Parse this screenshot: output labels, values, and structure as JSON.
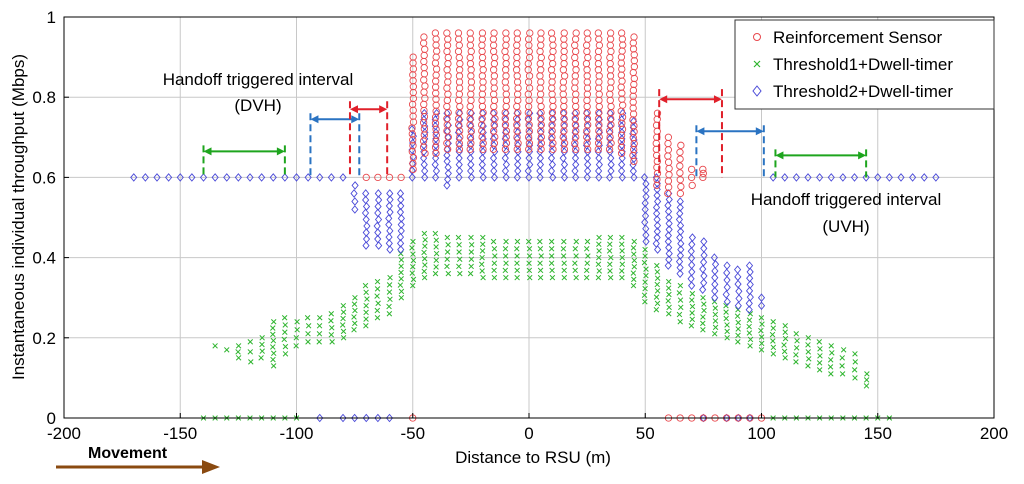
{
  "chart_data": {
    "type": "scatter",
    "xlabel": "Distance to RSU (m)",
    "ylabel": "Instantaneous individual throughput (Mbps)",
    "xlim": [
      -200,
      200
    ],
    "ylim": [
      0,
      1
    ],
    "xticks": [
      -200,
      -150,
      -100,
      -50,
      0,
      50,
      100,
      150,
      200
    ],
    "yticks": [
      0,
      0.2,
      0.4,
      0.6,
      0.8,
      1
    ],
    "xtick_labels": [
      "-200",
      "-150",
      "-100",
      "-50",
      "0",
      "50",
      "100",
      "150",
      "200"
    ],
    "ytick_labels": [
      "0",
      "0.2",
      "0.4",
      "0.6",
      "0.8",
      "1"
    ],
    "grid": true,
    "legend_position": "top-right",
    "series": [
      {
        "name": "Reinforcement Sensor",
        "marker": "circle",
        "color": "#e8474c",
        "columns": [
          {
            "x": -50,
            "ymin": 0.62,
            "ymax": 0.9
          },
          {
            "x": -45,
            "ymin": 0.66,
            "ymax": 0.95
          },
          {
            "x": -40,
            "ymin": 0.66,
            "ymax": 0.96
          },
          {
            "x": -35,
            "ymin": 0.67,
            "ymax": 0.96
          },
          {
            "x": -30,
            "ymin": 0.67,
            "ymax": 0.96
          },
          {
            "x": -25,
            "ymin": 0.67,
            "ymax": 0.96
          },
          {
            "x": -20,
            "ymin": 0.67,
            "ymax": 0.96
          },
          {
            "x": -15,
            "ymin": 0.67,
            "ymax": 0.96
          },
          {
            "x": -10,
            "ymin": 0.67,
            "ymax": 0.96
          },
          {
            "x": -5,
            "ymin": 0.67,
            "ymax": 0.96
          },
          {
            "x": 0,
            "ymin": 0.67,
            "ymax": 0.96
          },
          {
            "x": 5,
            "ymin": 0.67,
            "ymax": 0.96
          },
          {
            "x": 10,
            "ymin": 0.67,
            "ymax": 0.96
          },
          {
            "x": 15,
            "ymin": 0.67,
            "ymax": 0.96
          },
          {
            "x": 20,
            "ymin": 0.67,
            "ymax": 0.96
          },
          {
            "x": 25,
            "ymin": 0.67,
            "ymax": 0.96
          },
          {
            "x": 30,
            "ymin": 0.67,
            "ymax": 0.96
          },
          {
            "x": 35,
            "ymin": 0.67,
            "ymax": 0.96
          },
          {
            "x": 40,
            "ymin": 0.66,
            "ymax": 0.96
          },
          {
            "x": 45,
            "ymin": 0.64,
            "ymax": 0.95
          },
          {
            "x": 55,
            "ymin": 0.58,
            "ymax": 0.76
          },
          {
            "x": 60,
            "ymin": 0.56,
            "ymax": 0.7
          },
          {
            "x": 65,
            "ymin": 0.56,
            "ymax": 0.68
          },
          {
            "x": 70,
            "ymin": 0.58,
            "ymax": 0.62
          },
          {
            "x": 75,
            "ymin": 0.6,
            "ymax": 0.62
          }
        ],
        "outliers": [
          {
            "x": -70,
            "y": 0.6
          },
          {
            "x": -65,
            "y": 0.6
          },
          {
            "x": -60,
            "y": 0.6
          },
          {
            "x": -55,
            "y": 0.6
          },
          {
            "x": 60,
            "y": 0.0
          },
          {
            "x": 65,
            "y": 0.0
          },
          {
            "x": 70,
            "y": 0.0
          },
          {
            "x": 75,
            "y": 0.0
          },
          {
            "x": 80,
            "y": 0.0
          },
          {
            "x": 85,
            "y": 0.0
          },
          {
            "x": 90,
            "y": 0.0
          },
          {
            "x": 95,
            "y": 0.0
          },
          {
            "x": 100,
            "y": 0.0
          },
          {
            "x": -50,
            "y": 0.0
          }
        ]
      },
      {
        "name": "Threshold1+Dwell-timer",
        "marker": "x",
        "color": "#2fb52f",
        "columns": [
          {
            "x": -125,
            "ymin": 0.15,
            "ymax": 0.18
          },
          {
            "x": -120,
            "ymin": 0.14,
            "ymax": 0.19
          },
          {
            "x": -115,
            "ymin": 0.15,
            "ymax": 0.2
          },
          {
            "x": -110,
            "ymin": 0.13,
            "ymax": 0.24
          },
          {
            "x": -105,
            "ymin": 0.16,
            "ymax": 0.25
          },
          {
            "x": -100,
            "ymin": 0.18,
            "ymax": 0.24
          },
          {
            "x": -95,
            "ymin": 0.19,
            "ymax": 0.25
          },
          {
            "x": -90,
            "ymin": 0.19,
            "ymax": 0.25
          },
          {
            "x": -85,
            "ymin": 0.19,
            "ymax": 0.26
          },
          {
            "x": -80,
            "ymin": 0.2,
            "ymax": 0.28
          },
          {
            "x": -75,
            "ymin": 0.22,
            "ymax": 0.3
          },
          {
            "x": -70,
            "ymin": 0.23,
            "ymax": 0.33
          },
          {
            "x": -65,
            "ymin": 0.25,
            "ymax": 0.34
          },
          {
            "x": -60,
            "ymin": 0.26,
            "ymax": 0.35
          },
          {
            "x": -55,
            "ymin": 0.3,
            "ymax": 0.41
          },
          {
            "x": -50,
            "ymin": 0.33,
            "ymax": 0.44
          },
          {
            "x": -45,
            "ymin": 0.35,
            "ymax": 0.46
          },
          {
            "x": -40,
            "ymin": 0.36,
            "ymax": 0.46
          },
          {
            "x": -35,
            "ymin": 0.36,
            "ymax": 0.45
          },
          {
            "x": -30,
            "ymin": 0.36,
            "ymax": 0.45
          },
          {
            "x": -25,
            "ymin": 0.36,
            "ymax": 0.45
          },
          {
            "x": -20,
            "ymin": 0.35,
            "ymax": 0.45
          },
          {
            "x": -15,
            "ymin": 0.35,
            "ymax": 0.44
          },
          {
            "x": -10,
            "ymin": 0.35,
            "ymax": 0.44
          },
          {
            "x": -5,
            "ymin": 0.35,
            "ymax": 0.44
          },
          {
            "x": 0,
            "ymin": 0.35,
            "ymax": 0.44
          },
          {
            "x": 5,
            "ymin": 0.35,
            "ymax": 0.44
          },
          {
            "x": 10,
            "ymin": 0.35,
            "ymax": 0.44
          },
          {
            "x": 15,
            "ymin": 0.35,
            "ymax": 0.44
          },
          {
            "x": 20,
            "ymin": 0.35,
            "ymax": 0.44
          },
          {
            "x": 25,
            "ymin": 0.35,
            "ymax": 0.44
          },
          {
            "x": 30,
            "ymin": 0.35,
            "ymax": 0.45
          },
          {
            "x": 35,
            "ymin": 0.35,
            "ymax": 0.45
          },
          {
            "x": 40,
            "ymin": 0.35,
            "ymax": 0.45
          },
          {
            "x": 45,
            "ymin": 0.33,
            "ymax": 0.44
          },
          {
            "x": 50,
            "ymin": 0.29,
            "ymax": 0.42
          },
          {
            "x": 55,
            "ymin": 0.27,
            "ymax": 0.38
          },
          {
            "x": 60,
            "ymin": 0.26,
            "ymax": 0.34
          },
          {
            "x": 65,
            "ymin": 0.24,
            "ymax": 0.33
          },
          {
            "x": 70,
            "ymin": 0.23,
            "ymax": 0.31
          },
          {
            "x": 75,
            "ymin": 0.22,
            "ymax": 0.3
          },
          {
            "x": 80,
            "ymin": 0.21,
            "ymax": 0.29
          },
          {
            "x": 85,
            "ymin": 0.2,
            "ymax": 0.28
          },
          {
            "x": 90,
            "ymin": 0.19,
            "ymax": 0.27
          },
          {
            "x": 95,
            "ymin": 0.18,
            "ymax": 0.26
          },
          {
            "x": 100,
            "ymin": 0.17,
            "ymax": 0.25
          },
          {
            "x": 105,
            "ymin": 0.16,
            "ymax": 0.24
          },
          {
            "x": 110,
            "ymin": 0.15,
            "ymax": 0.23
          },
          {
            "x": 115,
            "ymin": 0.14,
            "ymax": 0.21
          },
          {
            "x": 120,
            "ymin": 0.13,
            "ymax": 0.2
          },
          {
            "x": 125,
            "ymin": 0.12,
            "ymax": 0.19
          },
          {
            "x": 130,
            "ymin": 0.11,
            "ymax": 0.18
          },
          {
            "x": 135,
            "ymin": 0.11,
            "ymax": 0.17
          },
          {
            "x": 140,
            "ymin": 0.1,
            "ymax": 0.16
          },
          {
            "x": 145,
            "ymin": 0.08,
            "ymax": 0.11
          }
        ],
        "outliers": [
          {
            "x": -130,
            "y": 0.17
          },
          {
            "x": -135,
            "y": 0.18
          },
          {
            "x": -140,
            "y": 0.0
          },
          {
            "x": -135,
            "y": 0.0
          },
          {
            "x": -130,
            "y": 0.0
          },
          {
            "x": -125,
            "y": 0.0
          },
          {
            "x": -120,
            "y": 0.0
          },
          {
            "x": -115,
            "y": 0.0
          },
          {
            "x": -110,
            "y": 0.0
          },
          {
            "x": -105,
            "y": 0.0
          },
          {
            "x": -100,
            "y": 0.0
          },
          {
            "x": 105,
            "y": 0.0
          },
          {
            "x": 110,
            "y": 0.0
          },
          {
            "x": 115,
            "y": 0.0
          },
          {
            "x": 120,
            "y": 0.0
          },
          {
            "x": 125,
            "y": 0.0
          },
          {
            "x": 130,
            "y": 0.0
          },
          {
            "x": 135,
            "y": 0.0
          },
          {
            "x": 140,
            "y": 0.0
          },
          {
            "x": 145,
            "y": 0.0
          },
          {
            "x": 150,
            "y": 0.0
          },
          {
            "x": 155,
            "y": 0.0
          }
        ]
      },
      {
        "name": "Threshold2+Dwell-timer",
        "marker": "diamond",
        "color": "#4a4ad8",
        "columns": [
          {
            "x": -75,
            "ymin": 0.52,
            "ymax": 0.58
          },
          {
            "x": -70,
            "ymin": 0.43,
            "ymax": 0.56
          },
          {
            "x": -65,
            "ymin": 0.43,
            "ymax": 0.56
          },
          {
            "x": -60,
            "ymin": 0.42,
            "ymax": 0.56
          },
          {
            "x": -55,
            "ymin": 0.42,
            "ymax": 0.56
          },
          {
            "x": -50,
            "ymin": 0.6,
            "ymax": 0.72
          },
          {
            "x": -45,
            "ymin": 0.6,
            "ymax": 0.76
          },
          {
            "x": -40,
            "ymin": 0.6,
            "ymax": 0.76
          },
          {
            "x": -35,
            "ymin": 0.58,
            "ymax": 0.76
          },
          {
            "x": -30,
            "ymin": 0.6,
            "ymax": 0.76
          },
          {
            "x": -25,
            "ymin": 0.6,
            "ymax": 0.76
          },
          {
            "x": -20,
            "ymin": 0.6,
            "ymax": 0.76
          },
          {
            "x": -15,
            "ymin": 0.6,
            "ymax": 0.76
          },
          {
            "x": -10,
            "ymin": 0.6,
            "ymax": 0.76
          },
          {
            "x": -5,
            "ymin": 0.6,
            "ymax": 0.76
          },
          {
            "x": 0,
            "ymin": 0.6,
            "ymax": 0.76
          },
          {
            "x": 5,
            "ymin": 0.6,
            "ymax": 0.76
          },
          {
            "x": 10,
            "ymin": 0.6,
            "ymax": 0.76
          },
          {
            "x": 15,
            "ymin": 0.6,
            "ymax": 0.76
          },
          {
            "x": 20,
            "ymin": 0.6,
            "ymax": 0.76
          },
          {
            "x": 25,
            "ymin": 0.6,
            "ymax": 0.76
          },
          {
            "x": 30,
            "ymin": 0.6,
            "ymax": 0.76
          },
          {
            "x": 35,
            "ymin": 0.6,
            "ymax": 0.76
          },
          {
            "x": 40,
            "ymin": 0.6,
            "ymax": 0.76
          },
          {
            "x": 45,
            "ymin": 0.6,
            "ymax": 0.74
          },
          {
            "x": 50,
            "ymin": 0.44,
            "ymax": 0.6
          },
          {
            "x": 55,
            "ymin": 0.42,
            "ymax": 0.6
          },
          {
            "x": 60,
            "ymin": 0.38,
            "ymax": 0.56
          },
          {
            "x": 65,
            "ymin": 0.36,
            "ymax": 0.54
          },
          {
            "x": 70,
            "ymin": 0.33,
            "ymax": 0.45
          },
          {
            "x": 75,
            "ymin": 0.32,
            "ymax": 0.44
          },
          {
            "x": 80,
            "ymin": 0.3,
            "ymax": 0.4
          },
          {
            "x": 85,
            "ymin": 0.29,
            "ymax": 0.38
          },
          {
            "x": 90,
            "ymin": 0.28,
            "ymax": 0.37
          },
          {
            "x": 95,
            "ymin": 0.27,
            "ymax": 0.38
          }
        ],
        "outliers": [
          {
            "x": -170,
            "y": 0.6
          },
          {
            "x": -165,
            "y": 0.6
          },
          {
            "x": -160,
            "y": 0.6
          },
          {
            "x": -155,
            "y": 0.6
          },
          {
            "x": -150,
            "y": 0.6
          },
          {
            "x": -145,
            "y": 0.6
          },
          {
            "x": -140,
            "y": 0.6
          },
          {
            "x": -135,
            "y": 0.6
          },
          {
            "x": -130,
            "y": 0.6
          },
          {
            "x": -125,
            "y": 0.6
          },
          {
            "x": -120,
            "y": 0.6
          },
          {
            "x": -115,
            "y": 0.6
          },
          {
            "x": -110,
            "y": 0.6
          },
          {
            "x": -105,
            "y": 0.6
          },
          {
            "x": -100,
            "y": 0.6
          },
          {
            "x": -95,
            "y": 0.6
          },
          {
            "x": -90,
            "y": 0.6
          },
          {
            "x": -85,
            "y": 0.6
          },
          {
            "x": -80,
            "y": 0.6
          },
          {
            "x": 105,
            "y": 0.6
          },
          {
            "x": 110,
            "y": 0.6
          },
          {
            "x": 115,
            "y": 0.6
          },
          {
            "x": 120,
            "y": 0.6
          },
          {
            "x": 125,
            "y": 0.6
          },
          {
            "x": 130,
            "y": 0.6
          },
          {
            "x": 135,
            "y": 0.6
          },
          {
            "x": 140,
            "y": 0.6
          },
          {
            "x": 145,
            "y": 0.6
          },
          {
            "x": 150,
            "y": 0.6
          },
          {
            "x": 155,
            "y": 0.6
          },
          {
            "x": 160,
            "y": 0.6
          },
          {
            "x": 165,
            "y": 0.6
          },
          {
            "x": 170,
            "y": 0.6
          },
          {
            "x": 175,
            "y": 0.6
          },
          {
            "x": 100,
            "y": 0.28
          },
          {
            "x": 100,
            "y": 0.3
          },
          {
            "x": -60,
            "y": 0.0
          },
          {
            "x": -65,
            "y": 0.0
          },
          {
            "x": -70,
            "y": 0.0
          },
          {
            "x": -75,
            "y": 0.0
          },
          {
            "x": -80,
            "y": 0.0
          },
          {
            "x": -90,
            "y": 0.0
          },
          {
            "x": 75,
            "y": 0.0
          },
          {
            "x": 85,
            "y": 0.0
          },
          {
            "x": 90,
            "y": 0.0
          },
          {
            "x": 95,
            "y": 0.0
          }
        ]
      }
    ],
    "annotations": [
      {
        "id": "dvh",
        "lines": [
          "Handoff triggered interval",
          "(DVH)"
        ],
        "position": "upper-left"
      },
      {
        "id": "uvh",
        "lines": [
          "Handoff triggered interval",
          "(UVH)"
        ],
        "position": "right"
      }
    ],
    "intervals": [
      {
        "x1": -140,
        "x2": -105,
        "y": 0.665,
        "color": "#1ea51e",
        "dash_top": 0.68,
        "dash_bottom": 0.6
      },
      {
        "x1": -94,
        "x2": -73,
        "y": 0.745,
        "color": "#2a73c2",
        "dash_top": 0.76,
        "dash_bottom": 0.6
      },
      {
        "x1": -77,
        "x2": -61,
        "y": 0.77,
        "color": "#e0202a",
        "dash_top": 0.79,
        "dash_bottom": 0.6
      },
      {
        "x1": 56,
        "x2": 83,
        "y": 0.795,
        "color": "#e0202a",
        "dash_top": 0.82,
        "dash_bottom": 0.6
      },
      {
        "x1": 72,
        "x2": 101,
        "y": 0.715,
        "color": "#2a73c2",
        "dash_top": 0.73,
        "dash_bottom": 0.6
      },
      {
        "x1": 106,
        "x2": 145,
        "y": 0.655,
        "color": "#1ea51e",
        "dash_top": 0.67,
        "dash_bottom": 0.6
      }
    ],
    "movement": {
      "label": "Movement",
      "color": "#8a4a10"
    }
  }
}
